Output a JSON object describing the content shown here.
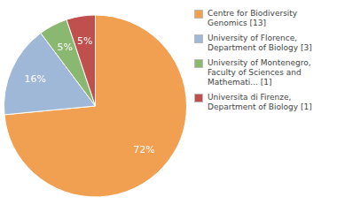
{
  "chart_data": {
    "type": "pie",
    "categories": [
      "Centre for Biodiversity\nGenomics [13]",
      "University of Florence,\nDepartment of Biology [3]",
      "University of Montenegro,\nFaculty of Sciences and\nMathemati... [1]",
      "Universita di Firenze,\nDepartment of Biology [1]"
    ],
    "values": [
      72,
      16,
      5,
      5
    ],
    "value_labels": [
      "72%",
      "16%",
      "5%",
      "5%"
    ],
    "colors": [
      "#f0a050",
      "#a0b8d8",
      "#8ab870",
      "#c0504d"
    ],
    "data_labels": true,
    "legend": "right"
  }
}
